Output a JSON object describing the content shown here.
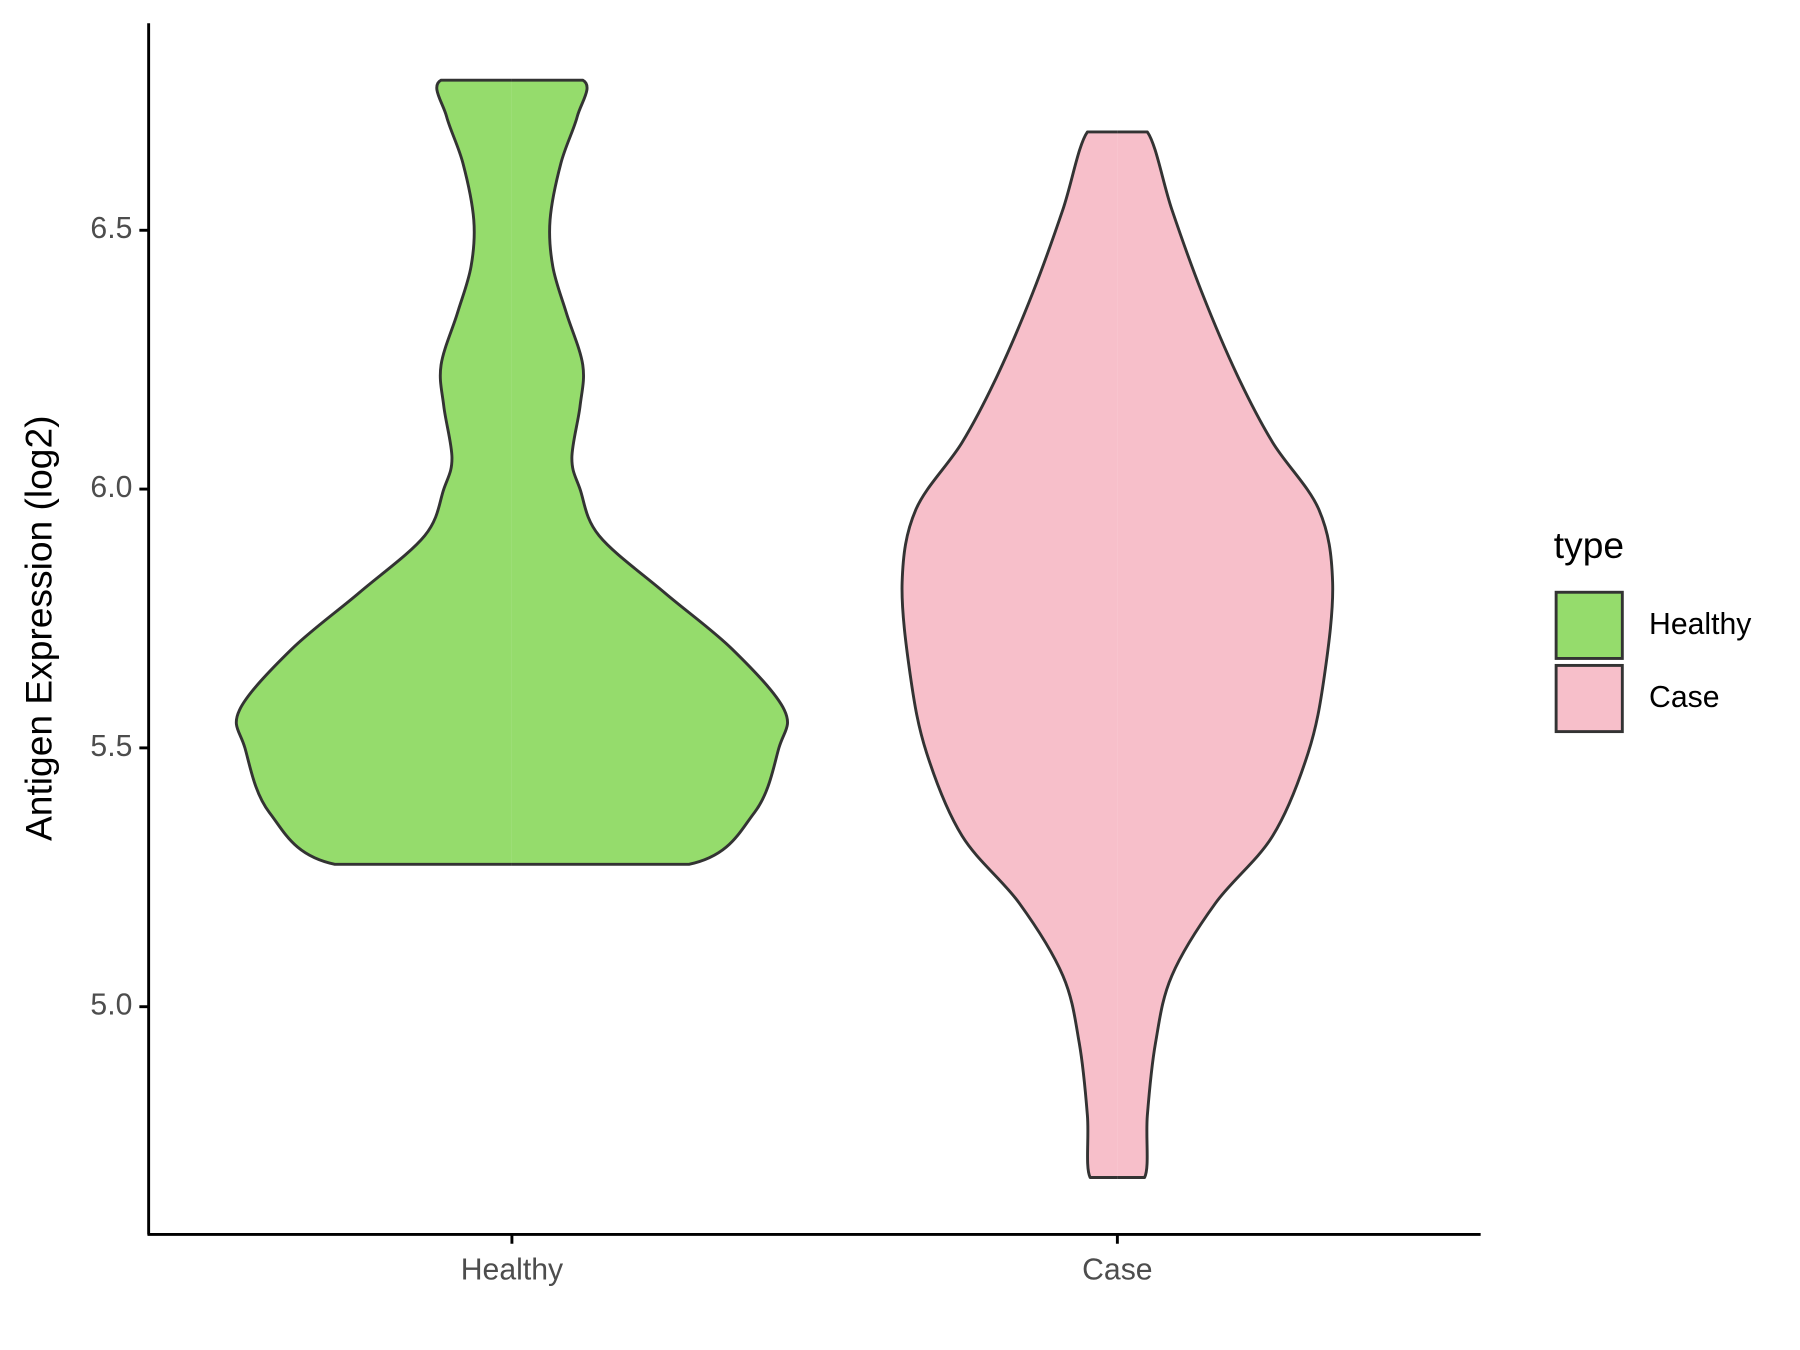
{
  "chart_data": {
    "type": "violin",
    "y_label": "Antigen Expression (log2)",
    "categories": [
      "Healthy",
      "Case"
    ],
    "series": [
      {
        "name": "Healthy",
        "color": "#95dc6c",
        "y": [
          5.275,
          5.275,
          5.375,
          5.5,
          5.573,
          5.69,
          5.8,
          5.91,
          6.0,
          6.06,
          6.16,
          6.24,
          6.34,
          6.43,
          6.52,
          6.63,
          6.72,
          6.79,
          6.79
        ],
        "density": [
          0,
          0.65,
          0.89,
          0.98,
          1.0,
          0.81,
          0.56,
          0.32,
          0.25,
          0.22,
          0.25,
          0.26,
          0.2,
          0.15,
          0.14,
          0.18,
          0.24,
          0.26,
          0
        ]
      },
      {
        "name": "Case",
        "color": "#f7bfca",
        "y": [
          4.67,
          4.67,
          4.79,
          4.93,
          5.06,
          5.2,
          5.33,
          5.49,
          5.64,
          5.82,
          5.96,
          6.09,
          6.22,
          6.38,
          6.54,
          6.69,
          6.69
        ],
        "density": [
          0,
          0.1,
          0.11,
          0.14,
          0.2,
          0.36,
          0.57,
          0.7,
          0.76,
          0.79,
          0.74,
          0.57,
          0.44,
          0.31,
          0.2,
          0.11,
          0
        ]
      }
    ],
    "ylim": [
      4.56,
      6.9
    ],
    "yticks": [
      {
        "value": 5,
        "label": "5.0"
      },
      {
        "value": 5.5,
        "label": "5.5"
      },
      {
        "value": 6,
        "label": "6.0"
      },
      {
        "value": 6.5,
        "label": "6.5"
      }
    ],
    "legend_title": "type",
    "legend_position": "right"
  }
}
